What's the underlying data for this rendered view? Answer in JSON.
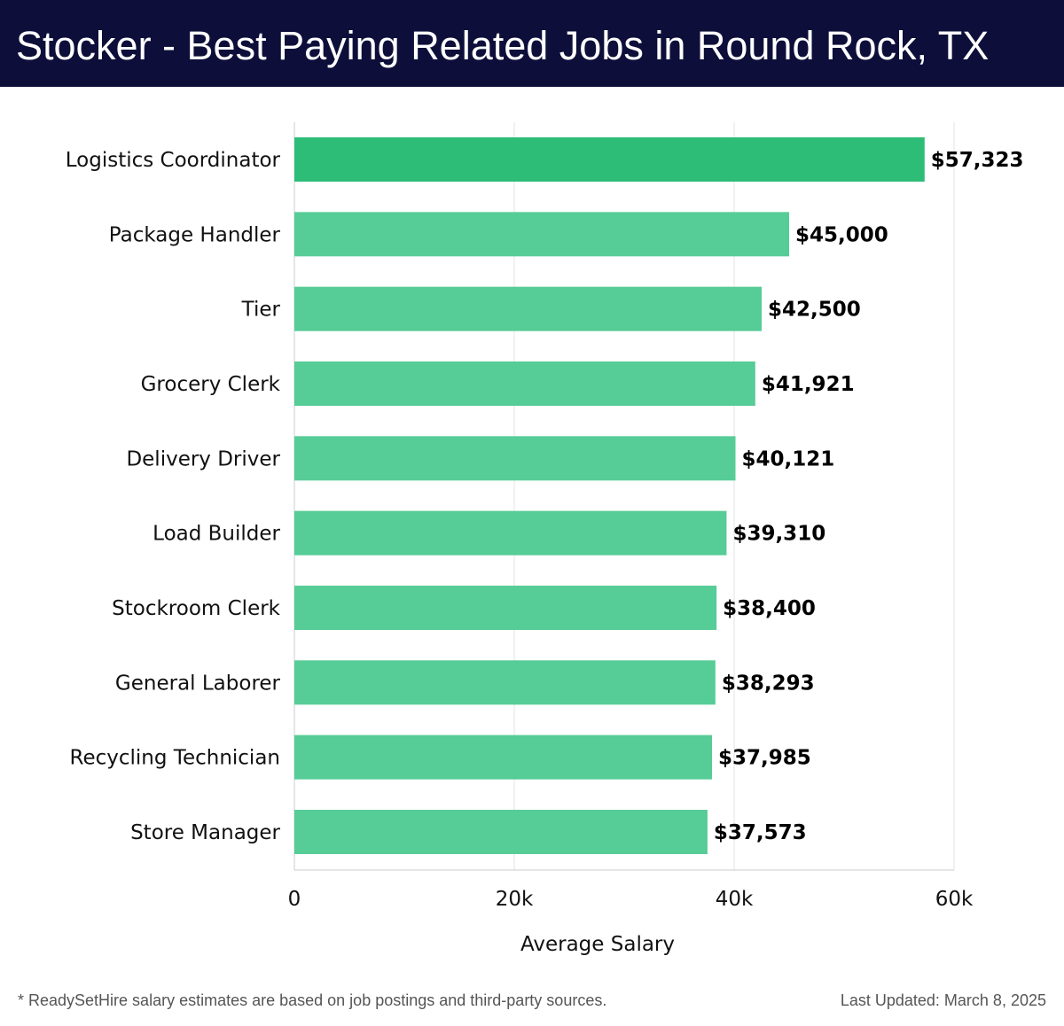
{
  "header": {
    "title": "Stocker - Best Paying Related Jobs in Round Rock, TX"
  },
  "chart_data": {
    "type": "bar",
    "orientation": "horizontal",
    "title": "Stocker - Best Paying Related Jobs in Round Rock, TX",
    "xlabel": "Average Salary",
    "ylabel": "",
    "xlim": [
      0,
      60000
    ],
    "xticks": [
      0,
      20000,
      40000,
      60000
    ],
    "xtick_labels": [
      "0",
      "20k",
      "40k",
      "60k"
    ],
    "grid": "vertical",
    "categories": [
      "Logistics Coordinator",
      "Package Handler",
      "Tier",
      "Grocery Clerk",
      "Delivery Driver",
      "Load Builder",
      "Stockroom Clerk",
      "General Laborer",
      "Recycling Technician",
      "Store Manager"
    ],
    "values": [
      57323,
      45000,
      42500,
      41921,
      40121,
      39310,
      38400,
      38293,
      37985,
      37573
    ],
    "value_labels": [
      "$57,323",
      "$45,000",
      "$42,500",
      "$41,921",
      "$40,121",
      "$39,310",
      "$38,400",
      "$38,293",
      "$37,985",
      "$37,573"
    ],
    "colors": {
      "top_bar": "#2ebd77",
      "bars": "#56cc96",
      "grid": "#e3e3e3",
      "axis": "#cccccc"
    }
  },
  "footer": {
    "note": "* ReadySetHire salary estimates are based on job postings and third-party sources.",
    "updated": "Last Updated: March 8, 2025"
  }
}
